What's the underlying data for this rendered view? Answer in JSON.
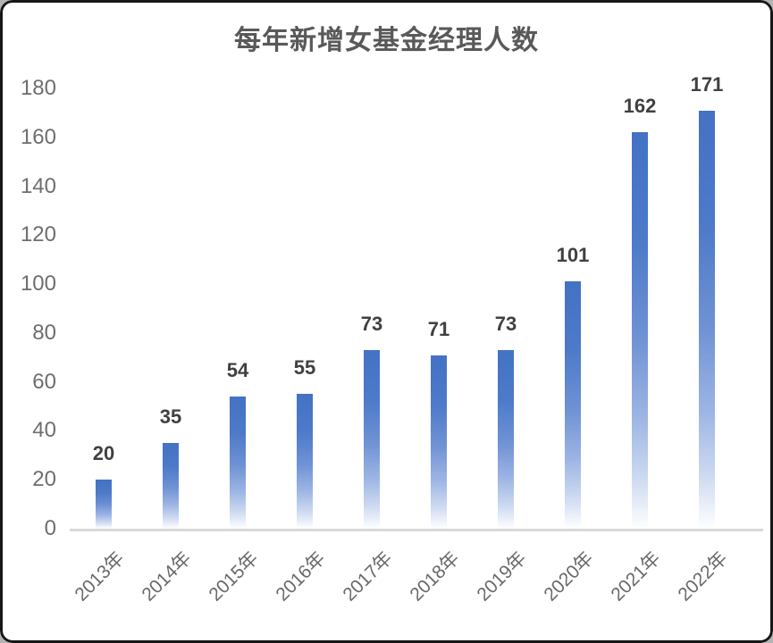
{
  "chart_data": {
    "type": "bar",
    "title": "每年新增女基金经理人数",
    "categories": [
      "2013年",
      "2014年",
      "2015年",
      "2016年",
      "2017年",
      "2018年",
      "2019年",
      "2020年",
      "2021年",
      "2022年"
    ],
    "values": [
      20,
      35,
      54,
      55,
      73,
      71,
      73,
      101,
      162,
      171
    ],
    "xlabel": "",
    "ylabel": "",
    "ylim": [
      0,
      180
    ],
    "yticks": [
      0,
      20,
      40,
      60,
      80,
      100,
      120,
      140,
      160,
      180
    ],
    "grid": false,
    "legend": "none",
    "bar_color_top": "#4472C4",
    "bar_color_bottom": "#FFFFFF",
    "value_label_color": "#404040",
    "axis_label_color": "#6E6E6E",
    "title_color": "#595959",
    "axis_line_color": "#D9D9D9"
  }
}
